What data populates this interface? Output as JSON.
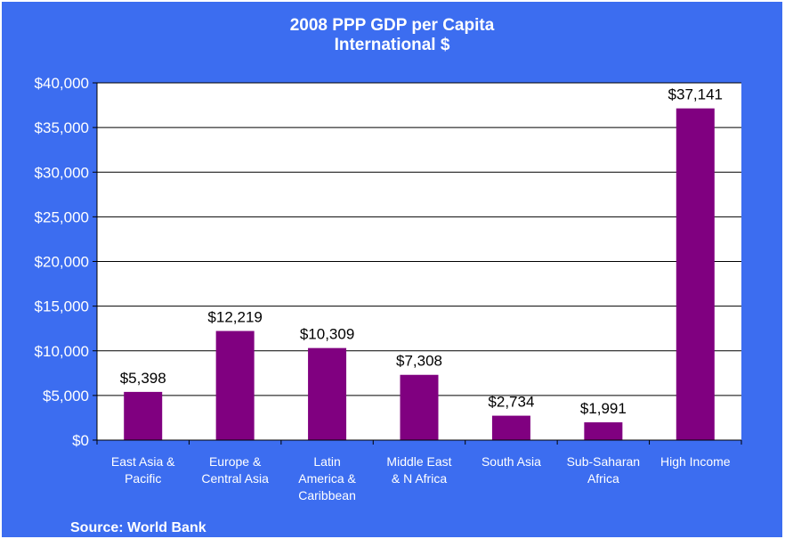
{
  "chart_data": {
    "type": "bar",
    "title": "2008 PPP GDP per Capita",
    "subtitle": "International $",
    "categories": [
      [
        "East Asia &",
        "Pacific"
      ],
      [
        "Europe &",
        "Central Asia"
      ],
      [
        "Latin",
        "America &",
        "Caribbean"
      ],
      [
        "Middle East",
        "& N Africa"
      ],
      [
        "South Asia"
      ],
      [
        "Sub-Saharan",
        "Africa"
      ],
      [
        "High Income"
      ]
    ],
    "values": [
      5398,
      12219,
      10309,
      7308,
      2734,
      1991,
      37141
    ],
    "data_labels": [
      "$5,398",
      "$12,219",
      "$10,309",
      "$7,308",
      "$2,734",
      "$1,991",
      "$37,141"
    ],
    "ylim": [
      0,
      40000
    ],
    "ytick_values": [
      0,
      5000,
      10000,
      15000,
      20000,
      25000,
      30000,
      35000,
      40000
    ],
    "ytick_labels": [
      "$0",
      "$5,000",
      "$10,000",
      "$15,000",
      "$20,000",
      "$25,000",
      "$30,000",
      "$35,000",
      "$40,000"
    ],
    "xlabel": "",
    "ylabel": "",
    "grid": true,
    "legend": "none",
    "bar_color": "#800080",
    "background_color": "#3c6df0",
    "plot_background_color": "#ffffff"
  },
  "source": "Source: World Bank"
}
